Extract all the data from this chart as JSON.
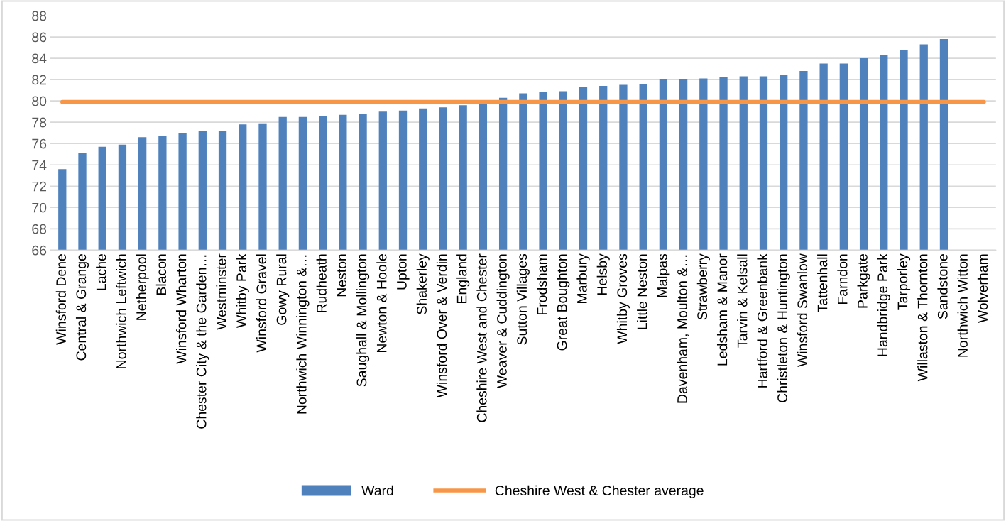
{
  "chart_data": {
    "type": "bar",
    "categories": [
      "Winsford Dene",
      "Central & Grange",
      "Lache",
      "Northwich Leftwich",
      "Netherpool",
      "Blacon",
      "Winsford Wharton",
      "Chester City & the Garden…",
      "Westminster",
      "Whitby Park",
      "Winsford Gravel",
      "Gowy Rural",
      "Northwich Winnington &…",
      "Rudheath",
      "Neston",
      "Saughall & Mollington",
      "Newton & Hoole",
      "Upton",
      "Shakerley",
      "Winsford Over & Verdin",
      "England",
      "Cheshire West and Chester",
      "Weaver & Cuddington",
      "Sutton Villages",
      "Frodsham",
      "Great Boughton",
      "Marbury",
      "Helsby",
      "Whitby Groves",
      "Little Neston",
      "Malpas",
      "Davenham, Moulton &…",
      "Strawberry",
      "Ledsham & Manor",
      "Tarvin & Kelsall",
      "Hartford & Greenbank",
      "Christleton & Huntington",
      "Winsford Swanlow",
      "Tattenhall",
      "Farndon",
      "Parkgate",
      "Handbridge Park",
      "Tarporley",
      "Willaston & Thornton",
      "Sandstone",
      "Northwich Witton",
      "Wolverham"
    ],
    "series": [
      {
        "name": "Ward",
        "color": "#4f81bd",
        "values": [
          73.6,
          75.1,
          75.7,
          75.9,
          76.6,
          76.7,
          77.0,
          77.2,
          77.2,
          77.8,
          77.9,
          78.5,
          78.5,
          78.6,
          78.7,
          78.8,
          79.0,
          79.1,
          79.3,
          79.4,
          79.6,
          79.9,
          80.3,
          80.7,
          80.8,
          80.9,
          81.3,
          81.4,
          81.5,
          81.6,
          82.0,
          82.0,
          82.1,
          82.2,
          82.3,
          82.3,
          82.4,
          82.8,
          83.5,
          83.5,
          84.0,
          84.3,
          84.8,
          85.3,
          85.8,
          null,
          null
        ]
      },
      {
        "name": "Cheshire West & Chester average",
        "type": "line",
        "color": "#f79646",
        "values": [
          79.9,
          79.9,
          79.9,
          79.9,
          79.9,
          79.9,
          79.9,
          79.9,
          79.9,
          79.9,
          79.9,
          79.9,
          79.9,
          79.9,
          79.9,
          79.9,
          79.9,
          79.9,
          79.9,
          79.9,
          79.9,
          79.9,
          79.9,
          79.9,
          79.9,
          79.9,
          79.9,
          79.9,
          79.9,
          79.9,
          79.9,
          79.9,
          79.9,
          79.9,
          79.9,
          79.9,
          79.9,
          79.9,
          79.9,
          79.9,
          79.9,
          79.9,
          79.9,
          79.9,
          79.9,
          79.9,
          79.9
        ]
      }
    ],
    "ylim": [
      66,
      88
    ],
    "yticks": [
      66,
      68,
      70,
      72,
      74,
      76,
      78,
      80,
      82,
      84,
      86,
      88
    ],
    "grid": "y",
    "legend": "bottom"
  }
}
